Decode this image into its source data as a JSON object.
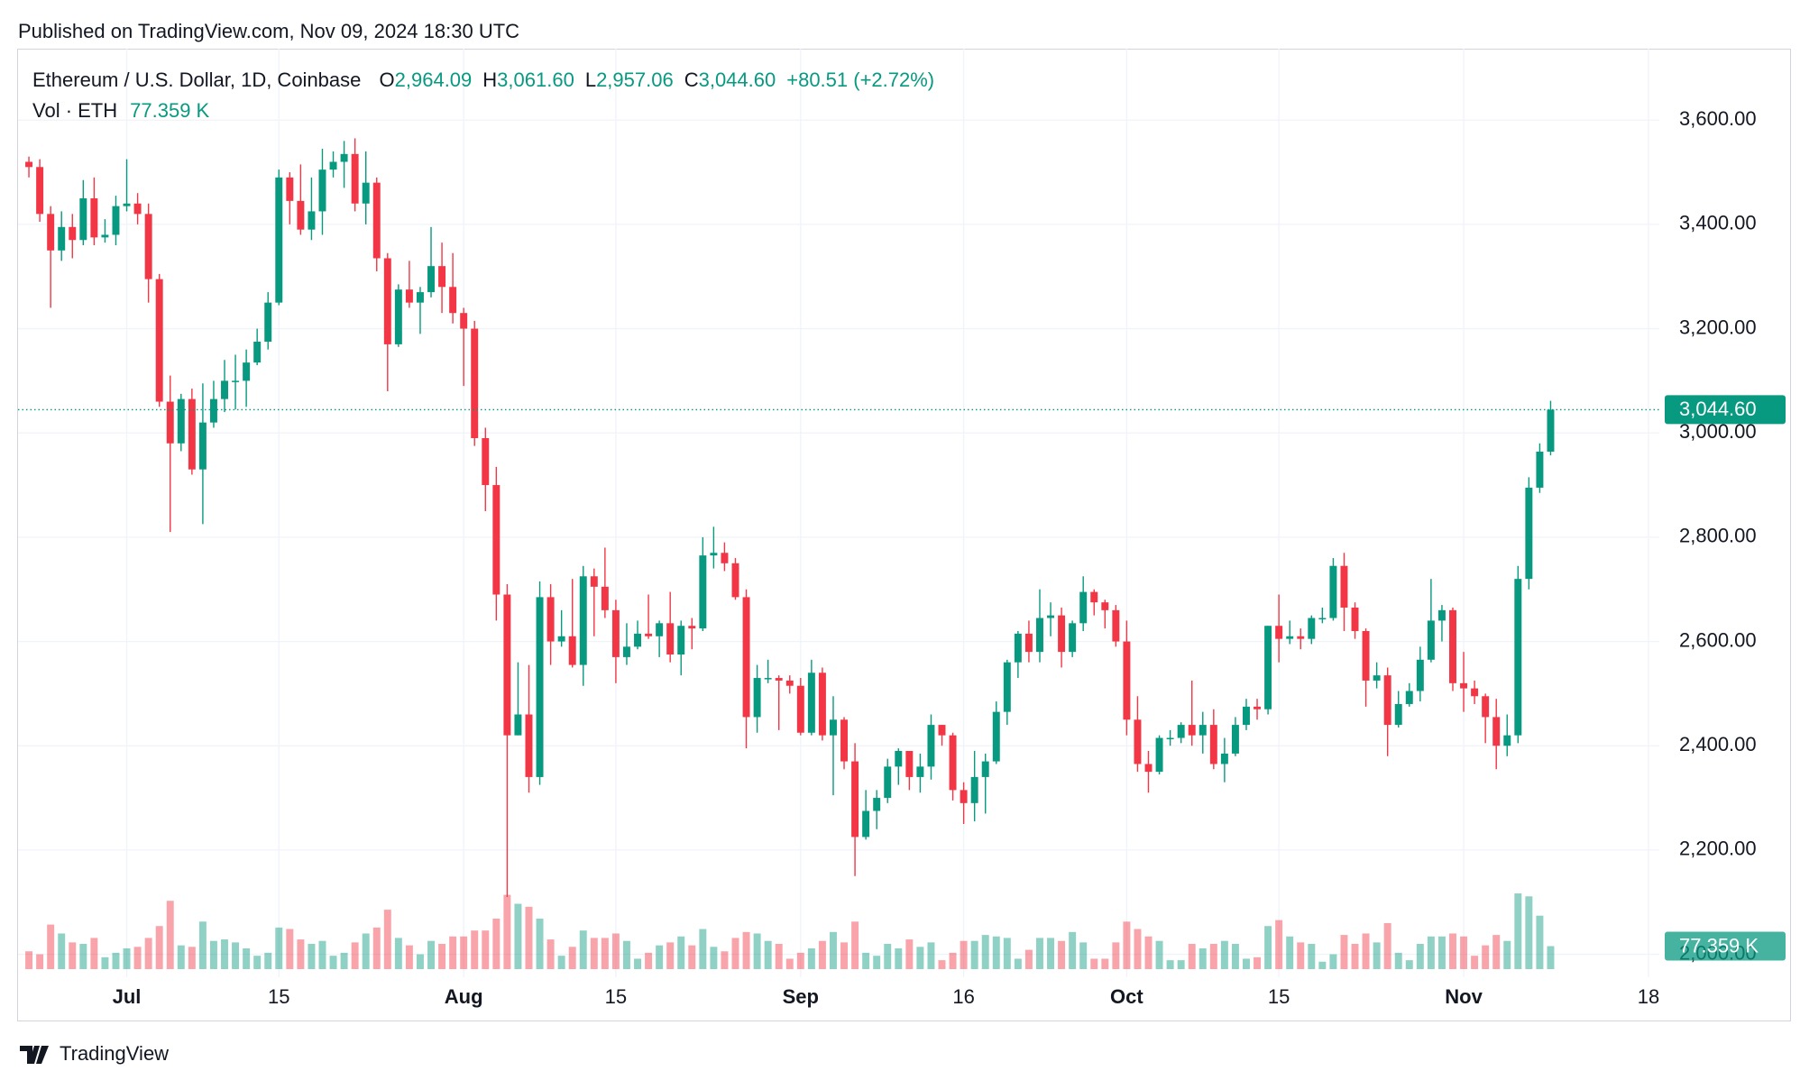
{
  "chart_data": {
    "type": "candlestick",
    "published": "Published on TradingView.com, Nov 09, 2024 18:30 UTC",
    "title": "Ethereum / U.S. Dollar, 1D, Coinbase",
    "legend_ohlc": [
      {
        "key": "O",
        "value": "2,964.09"
      },
      {
        "key": "H",
        "value": "3,061.60"
      },
      {
        "key": "L",
        "value": "2,957.06"
      },
      {
        "key": "C",
        "value": "3,044.60"
      }
    ],
    "change": "+80.51 (+2.72%)",
    "volume_title": "Vol · ETH",
    "last_volume_label": "77.359 K",
    "last_close_label": "3,044.60",
    "brand": "TradingView",
    "up_color": "#089981",
    "down_color": "#f23645",
    "x": [
      "2024-06-22",
      "2024-06-23",
      "2024-06-24",
      "2024-06-25",
      "2024-06-26",
      "2024-06-27",
      "2024-06-28",
      "2024-06-29",
      "2024-06-30",
      "2024-07-01",
      "2024-07-02",
      "2024-07-03",
      "2024-07-04",
      "2024-07-05",
      "2024-07-06",
      "2024-07-07",
      "2024-07-08",
      "2024-07-09",
      "2024-07-10",
      "2024-07-11",
      "2024-07-12",
      "2024-07-13",
      "2024-07-14",
      "2024-07-15",
      "2024-07-16",
      "2024-07-17",
      "2024-07-18",
      "2024-07-19",
      "2024-07-20",
      "2024-07-21",
      "2024-07-22",
      "2024-07-23",
      "2024-07-24",
      "2024-07-25",
      "2024-07-26",
      "2024-07-27",
      "2024-07-28",
      "2024-07-29",
      "2024-07-30",
      "2024-07-31",
      "2024-08-01",
      "2024-08-02",
      "2024-08-03",
      "2024-08-04",
      "2024-08-05",
      "2024-08-06",
      "2024-08-07",
      "2024-08-08",
      "2024-08-09",
      "2024-08-10",
      "2024-08-11",
      "2024-08-12",
      "2024-08-13",
      "2024-08-14",
      "2024-08-15",
      "2024-08-16",
      "2024-08-17",
      "2024-08-18",
      "2024-08-19",
      "2024-08-20",
      "2024-08-21",
      "2024-08-22",
      "2024-08-23",
      "2024-08-24",
      "2024-08-25",
      "2024-08-26",
      "2024-08-27",
      "2024-08-28",
      "2024-08-29",
      "2024-08-30",
      "2024-08-31",
      "2024-09-01",
      "2024-09-02",
      "2024-09-03",
      "2024-09-04",
      "2024-09-05",
      "2024-09-06",
      "2024-09-07",
      "2024-09-08",
      "2024-09-09",
      "2024-09-10",
      "2024-09-11",
      "2024-09-12",
      "2024-09-13",
      "2024-09-14",
      "2024-09-15",
      "2024-09-16",
      "2024-09-17",
      "2024-09-18",
      "2024-09-19",
      "2024-09-20",
      "2024-09-21",
      "2024-09-22",
      "2024-09-23",
      "2024-09-24",
      "2024-09-25",
      "2024-09-26",
      "2024-09-27",
      "2024-09-28",
      "2024-09-29",
      "2024-09-30",
      "2024-10-01",
      "2024-10-02",
      "2024-10-03",
      "2024-10-04",
      "2024-10-05",
      "2024-10-06",
      "2024-10-07",
      "2024-10-08",
      "2024-10-09",
      "2024-10-10",
      "2024-10-11",
      "2024-10-12",
      "2024-10-13",
      "2024-10-14",
      "2024-10-15",
      "2024-10-16",
      "2024-10-17",
      "2024-10-18",
      "2024-10-19",
      "2024-10-20",
      "2024-10-21",
      "2024-10-22",
      "2024-10-23",
      "2024-10-24",
      "2024-10-25",
      "2024-10-26",
      "2024-10-27",
      "2024-10-28",
      "2024-10-29",
      "2024-10-30",
      "2024-10-31",
      "2024-11-01",
      "2024-11-02",
      "2024-11-03",
      "2024-11-04",
      "2024-11-05",
      "2024-11-06",
      "2024-11-07",
      "2024-11-08",
      "2024-11-09"
    ],
    "open": [
      3520,
      3510,
      3420,
      3350,
      3395,
      3370,
      3450,
      3375,
      3380,
      3435,
      3440,
      3420,
      3295,
      3060,
      2980,
      3065,
      2930,
      3020,
      3065,
      3100,
      3100,
      3135,
      3175,
      3250,
      3490,
      3445,
      3390,
      3425,
      3505,
      3520,
      3535,
      3440,
      3480,
      3335,
      3170,
      3275,
      3250,
      3270,
      3320,
      3280,
      3230,
      3200,
      2990,
      2900,
      2690,
      2420,
      2460,
      2340,
      2685,
      2600,
      2610,
      2555,
      2725,
      2705,
      2660,
      2570,
      2590,
      2615,
      2610,
      2635,
      2575,
      2630,
      2625,
      2765,
      2770,
      2750,
      2685,
      2455,
      2530,
      2530,
      2525,
      2515,
      2425,
      2540,
      2420,
      2450,
      2370,
      2225,
      2275,
      2300,
      2360,
      2390,
      2340,
      2360,
      2440,
      2420,
      2315,
      2290,
      2340,
      2370,
      2465,
      2560,
      2615,
      2580,
      2645,
      2650,
      2580,
      2635,
      2695,
      2675,
      2660,
      2600,
      2450,
      2365,
      2350,
      2415,
      2415,
      2440,
      2420,
      2440,
      2365,
      2385,
      2440,
      2475,
      2470,
      2630,
      2605,
      2610,
      2605,
      2645,
      2645,
      2745,
      2665,
      2620,
      2525,
      2535,
      2440,
      2480,
      2505,
      2565,
      2640,
      2660,
      2520,
      2510,
      2495,
      2455,
      2400,
      2420,
      2720,
      2895,
      2964.09
    ],
    "high": [
      3530,
      3525,
      3435,
      3425,
      3420,
      3485,
      3490,
      3410,
      3455,
      3525,
      3460,
      3440,
      3305,
      3110,
      3075,
      3085,
      3095,
      3100,
      3140,
      3150,
      3160,
      3200,
      3270,
      3505,
      3500,
      3515,
      3490,
      3545,
      3540,
      3560,
      3565,
      3540,
      3490,
      3345,
      3285,
      3330,
      3280,
      3395,
      3365,
      3345,
      3240,
      3215,
      3010,
      2935,
      2710,
      2560,
      2555,
      2715,
      2710,
      2660,
      2720,
      2745,
      2740,
      2780,
      2680,
      2635,
      2640,
      2690,
      2640,
      2695,
      2640,
      2645,
      2800,
      2820,
      2790,
      2760,
      2700,
      2555,
      2565,
      2535,
      2535,
      2530,
      2565,
      2550,
      2495,
      2455,
      2405,
      2315,
      2315,
      2375,
      2395,
      2390,
      2385,
      2460,
      2440,
      2425,
      2330,
      2390,
      2385,
      2485,
      2565,
      2620,
      2640,
      2700,
      2675,
      2665,
      2640,
      2725,
      2700,
      2680,
      2670,
      2640,
      2495,
      2390,
      2420,
      2430,
      2445,
      2525,
      2465,
      2470,
      2415,
      2455,
      2490,
      2490,
      2630,
      2690,
      2640,
      2625,
      2650,
      2665,
      2760,
      2770,
      2675,
      2625,
      2560,
      2550,
      2505,
      2520,
      2590,
      2720,
      2670,
      2665,
      2580,
      2525,
      2500,
      2490,
      2460,
      2745,
      2915,
      2980,
      3061.6
    ],
    "low": [
      3490,
      3405,
      3240,
      3330,
      3335,
      3360,
      3360,
      3365,
      3360,
      3425,
      3400,
      3250,
      3050,
      2810,
      2965,
      2920,
      2825,
      3010,
      3040,
      3045,
      3050,
      3130,
      3160,
      3245,
      3400,
      3380,
      3370,
      3380,
      3490,
      3470,
      3425,
      3400,
      3310,
      3080,
      3165,
      3240,
      3190,
      3260,
      3230,
      3210,
      3090,
      2975,
      2850,
      2640,
      2110,
      2420,
      2310,
      2325,
      2555,
      2590,
      2550,
      2515,
      2610,
      2645,
      2520,
      2555,
      2585,
      2605,
      2570,
      2560,
      2535,
      2585,
      2620,
      2740,
      2735,
      2680,
      2395,
      2425,
      2520,
      2430,
      2500,
      2420,
      2420,
      2410,
      2305,
      2355,
      2150,
      2220,
      2240,
      2290,
      2325,
      2315,
      2310,
      2335,
      2400,
      2295,
      2250,
      2255,
      2270,
      2365,
      2440,
      2530,
      2560,
      2560,
      2610,
      2550,
      2570,
      2620,
      2650,
      2625,
      2590,
      2420,
      2350,
      2310,
      2345,
      2400,
      2405,
      2400,
      2385,
      2355,
      2330,
      2380,
      2430,
      2450,
      2460,
      2560,
      2595,
      2585,
      2595,
      2635,
      2640,
      2620,
      2605,
      2475,
      2510,
      2380,
      2435,
      2475,
      2485,
      2560,
      2600,
      2505,
      2465,
      2480,
      2405,
      2355,
      2380,
      2405,
      2700,
      2885,
      2957.06
    ],
    "close": [
      3510,
      3420,
      3350,
      3395,
      3370,
      3450,
      3375,
      3380,
      3435,
      3440,
      3420,
      3295,
      3060,
      2980,
      3065,
      2930,
      3020,
      3065,
      3100,
      3100,
      3135,
      3175,
      3250,
      3490,
      3445,
      3390,
      3425,
      3505,
      3520,
      3535,
      3440,
      3480,
      3335,
      3170,
      3275,
      3250,
      3270,
      3320,
      3280,
      3230,
      3200,
      2990,
      2900,
      2690,
      2420,
      2460,
      2340,
      2685,
      2600,
      2610,
      2555,
      2725,
      2705,
      2660,
      2570,
      2590,
      2615,
      2610,
      2635,
      2575,
      2630,
      2625,
      2765,
      2770,
      2750,
      2685,
      2455,
      2530,
      2530,
      2525,
      2515,
      2425,
      2540,
      2420,
      2450,
      2370,
      2225,
      2275,
      2300,
      2360,
      2390,
      2340,
      2360,
      2440,
      2420,
      2315,
      2290,
      2340,
      2370,
      2465,
      2560,
      2615,
      2580,
      2645,
      2650,
      2580,
      2635,
      2695,
      2675,
      2660,
      2600,
      2450,
      2365,
      2350,
      2415,
      2415,
      2440,
      2420,
      2440,
      2365,
      2385,
      2440,
      2475,
      2470,
      2630,
      2605,
      2610,
      2605,
      2645,
      2645,
      2745,
      2665,
      2620,
      2525,
      2535,
      2440,
      2480,
      2505,
      2565,
      2640,
      2660,
      2520,
      2510,
      2495,
      2455,
      2400,
      2420,
      2720,
      2895,
      2964.09,
      3044.6
    ],
    "volume": [
      60000,
      50000,
      150000,
      120000,
      90000,
      85000,
      105000,
      40000,
      55000,
      70000,
      75000,
      105000,
      145000,
      230000,
      80000,
      75000,
      160000,
      95000,
      100000,
      90000,
      70000,
      45000,
      55000,
      140000,
      135000,
      100000,
      85000,
      95000,
      45000,
      55000,
      90000,
      120000,
      140000,
      200000,
      105000,
      80000,
      50000,
      95000,
      85000,
      110000,
      110000,
      130000,
      130000,
      170000,
      250000,
      220000,
      210000,
      170000,
      100000,
      45000,
      75000,
      130000,
      105000,
      105000,
      120000,
      95000,
      35000,
      55000,
      80000,
      90000,
      110000,
      80000,
      135000,
      75000,
      60000,
      105000,
      125000,
      120000,
      95000,
      85000,
      35000,
      55000,
      70000,
      95000,
      125000,
      90000,
      160000,
      55000,
      45000,
      85000,
      70000,
      100000,
      75000,
      90000,
      30000,
      55000,
      95000,
      95000,
      115000,
      110000,
      105000,
      35000,
      65000,
      105000,
      105000,
      95000,
      125000,
      90000,
      35000,
      35000,
      90000,
      160000,
      135000,
      110000,
      95000,
      30000,
      30000,
      85000,
      70000,
      85000,
      95000,
      85000,
      35000,
      40000,
      145000,
      165000,
      110000,
      90000,
      85000,
      25000,
      50000,
      115000,
      85000,
      120000,
      90000,
      155000,
      55000,
      30000,
      85000,
      110000,
      110000,
      120000,
      110000,
      45000,
      80000,
      115000,
      95000,
      255000,
      245000,
      180000,
      77359
    ],
    "xlim": [
      "2024-06-21",
      "2024-11-19"
    ],
    "xticks": [
      {
        "value": "2024-07-01",
        "label": "Jul"
      },
      {
        "value": "2024-07-15",
        "label": "15"
      },
      {
        "value": "2024-08-01",
        "label": "Aug"
      },
      {
        "value": "2024-08-15",
        "label": "15"
      },
      {
        "value": "2024-09-01",
        "label": "Sep"
      },
      {
        "value": "2024-09-16",
        "label": "16"
      },
      {
        "value": "2024-10-01",
        "label": "Oct"
      },
      {
        "value": "2024-10-15",
        "label": "15"
      },
      {
        "value": "2024-11-01",
        "label": "Nov"
      },
      {
        "value": "2024-11-18",
        "label": "18"
      }
    ],
    "ylim": [
      1956,
      3737
    ],
    "yticks": [
      {
        "value": 2000,
        "label": "2,000.00"
      },
      {
        "value": 2200,
        "label": "2,200.00"
      },
      {
        "value": 2400,
        "label": "2,400.00"
      },
      {
        "value": 2600,
        "label": "2,600.00"
      },
      {
        "value": 2800,
        "label": "2,800.00"
      },
      {
        "value": 3000,
        "label": "3,000.00"
      },
      {
        "value": 3200,
        "label": "3,200.00"
      },
      {
        "value": 3400,
        "label": "3,400.00"
      },
      {
        "value": 3600,
        "label": "3,600.00"
      }
    ],
    "grid": true
  }
}
